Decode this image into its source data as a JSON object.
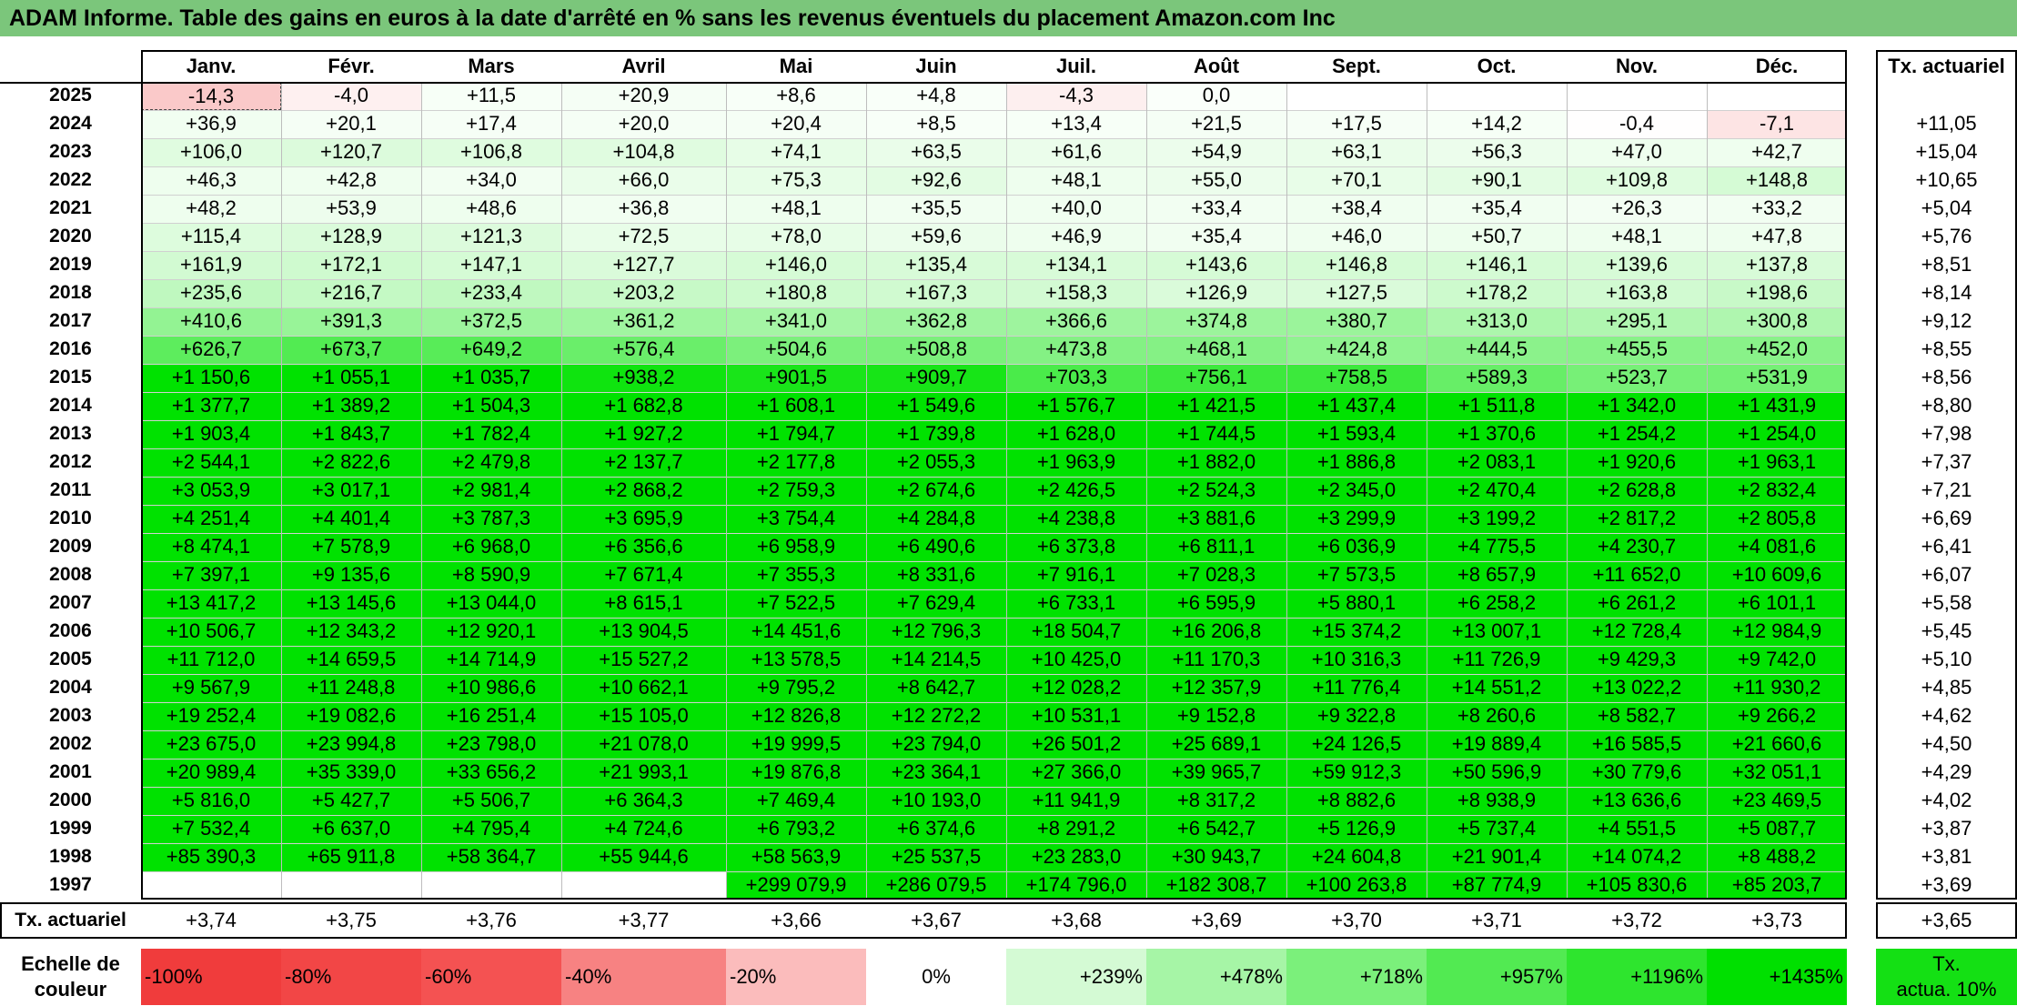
{
  "title": "ADAM Informe. Table des gains en euros à la date d'arrêté en % sans les revenus éventuels du placement Amazon.com Inc",
  "months": [
    "Janv.",
    "Févr.",
    "Mars",
    "Avril",
    "Mai",
    "Juin",
    "Juil.",
    "Août",
    "Sept.",
    "Oct.",
    "Nov.",
    "Déc."
  ],
  "rate_header": "Tx. actuariel",
  "rows": [
    {
      "year": "2025",
      "cells": [
        "-14,3",
        "-4,0",
        "+11,5",
        "+20,9",
        "+8,6",
        "+4,8",
        "-4,3",
        "0,0",
        "",
        "",
        "",
        ""
      ],
      "rate": ""
    },
    {
      "year": "2024",
      "cells": [
        "+36,9",
        "+20,1",
        "+17,4",
        "+20,0",
        "+20,4",
        "+8,5",
        "+13,4",
        "+21,5",
        "+17,5",
        "+14,2",
        "-0,4",
        "-7,1"
      ],
      "rate": "+11,05"
    },
    {
      "year": "2023",
      "cells": [
        "+106,0",
        "+120,7",
        "+106,8",
        "+104,8",
        "+74,1",
        "+63,5",
        "+61,6",
        "+54,9",
        "+63,1",
        "+56,3",
        "+47,0",
        "+42,7"
      ],
      "rate": "+15,04"
    },
    {
      "year": "2022",
      "cells": [
        "+46,3",
        "+42,8",
        "+34,0",
        "+66,0",
        "+75,3",
        "+92,6",
        "+48,1",
        "+55,0",
        "+70,1",
        "+90,1",
        "+109,8",
        "+148,8"
      ],
      "rate": "+10,65"
    },
    {
      "year": "2021",
      "cells": [
        "+48,2",
        "+53,9",
        "+48,6",
        "+36,8",
        "+48,1",
        "+35,5",
        "+40,0",
        "+33,4",
        "+38,4",
        "+35,4",
        "+26,3",
        "+33,2"
      ],
      "rate": "+5,04"
    },
    {
      "year": "2020",
      "cells": [
        "+115,4",
        "+128,9",
        "+121,3",
        "+72,5",
        "+78,0",
        "+59,6",
        "+46,9",
        "+35,4",
        "+46,0",
        "+50,7",
        "+48,1",
        "+47,8"
      ],
      "rate": "+5,76"
    },
    {
      "year": "2019",
      "cells": [
        "+161,9",
        "+172,1",
        "+147,1",
        "+127,7",
        "+146,0",
        "+135,4",
        "+134,1",
        "+143,6",
        "+146,8",
        "+146,1",
        "+139,6",
        "+137,8"
      ],
      "rate": "+8,51"
    },
    {
      "year": "2018",
      "cells": [
        "+235,6",
        "+216,7",
        "+233,4",
        "+203,2",
        "+180,8",
        "+167,3",
        "+158,3",
        "+126,9",
        "+127,5",
        "+178,2",
        "+163,8",
        "+198,6"
      ],
      "rate": "+8,14"
    },
    {
      "year": "2017",
      "cells": [
        "+410,6",
        "+391,3",
        "+372,5",
        "+361,2",
        "+341,0",
        "+362,8",
        "+366,6",
        "+374,8",
        "+380,7",
        "+313,0",
        "+295,1",
        "+300,8"
      ],
      "rate": "+9,12"
    },
    {
      "year": "2016",
      "cells": [
        "+626,7",
        "+673,7",
        "+649,2",
        "+576,4",
        "+504,6",
        "+508,8",
        "+473,8",
        "+468,1",
        "+424,8",
        "+444,5",
        "+455,5",
        "+452,0"
      ],
      "rate": "+8,55"
    },
    {
      "year": "2015",
      "cells": [
        "+1 150,6",
        "+1 055,1",
        "+1 035,7",
        "+938,2",
        "+901,5",
        "+909,7",
        "+703,3",
        "+756,1",
        "+758,5",
        "+589,3",
        "+523,7",
        "+531,9"
      ],
      "rate": "+8,56"
    },
    {
      "year": "2014",
      "cells": [
        "+1 377,7",
        "+1 389,2",
        "+1 504,3",
        "+1 682,8",
        "+1 608,1",
        "+1 549,6",
        "+1 576,7",
        "+1 421,5",
        "+1 437,4",
        "+1 511,8",
        "+1 342,0",
        "+1 431,9"
      ],
      "rate": "+8,80"
    },
    {
      "year": "2013",
      "cells": [
        "+1 903,4",
        "+1 843,7",
        "+1 782,4",
        "+1 927,2",
        "+1 794,7",
        "+1 739,8",
        "+1 628,0",
        "+1 744,5",
        "+1 593,4",
        "+1 370,6",
        "+1 254,2",
        "+1 254,0"
      ],
      "rate": "+7,98"
    },
    {
      "year": "2012",
      "cells": [
        "+2 544,1",
        "+2 822,6",
        "+2 479,8",
        "+2 137,7",
        "+2 177,8",
        "+2 055,3",
        "+1 963,9",
        "+1 882,0",
        "+1 886,8",
        "+2 083,1",
        "+1 920,6",
        "+1 963,1"
      ],
      "rate": "+7,37"
    },
    {
      "year": "2011",
      "cells": [
        "+3 053,9",
        "+3 017,1",
        "+2 981,4",
        "+2 868,2",
        "+2 759,3",
        "+2 674,6",
        "+2 426,5",
        "+2 524,3",
        "+2 345,0",
        "+2 470,4",
        "+2 628,8",
        "+2 832,4"
      ],
      "rate": "+7,21"
    },
    {
      "year": "2010",
      "cells": [
        "+4 251,4",
        "+4 401,4",
        "+3 787,3",
        "+3 695,9",
        "+3 754,4",
        "+4 284,8",
        "+4 238,8",
        "+3 881,6",
        "+3 299,9",
        "+3 199,2",
        "+2 817,2",
        "+2 805,8"
      ],
      "rate": "+6,69"
    },
    {
      "year": "2009",
      "cells": [
        "+8 474,1",
        "+7 578,9",
        "+6 968,0",
        "+6 356,6",
        "+6 958,9",
        "+6 490,6",
        "+6 373,8",
        "+6 811,1",
        "+6 036,9",
        "+4 775,5",
        "+4 230,7",
        "+4 081,6"
      ],
      "rate": "+6,41"
    },
    {
      "year": "2008",
      "cells": [
        "+7 397,1",
        "+9 135,6",
        "+8 590,9",
        "+7 671,4",
        "+7 355,3",
        "+8 331,6",
        "+7 916,1",
        "+7 028,3",
        "+7 573,5",
        "+8 657,9",
        "+11 652,0",
        "+10 609,6"
      ],
      "rate": "+6,07"
    },
    {
      "year": "2007",
      "cells": [
        "+13 417,2",
        "+13 145,6",
        "+13 044,0",
        "+8 615,1",
        "+7 522,5",
        "+7 629,4",
        "+6 733,1",
        "+6 595,9",
        "+5 880,1",
        "+6 258,2",
        "+6 261,2",
        "+6 101,1"
      ],
      "rate": "+5,58"
    },
    {
      "year": "2006",
      "cells": [
        "+10 506,7",
        "+12 343,2",
        "+12 920,1",
        "+13 904,5",
        "+14 451,6",
        "+12 796,3",
        "+18 504,7",
        "+16 206,8",
        "+15 374,2",
        "+13 007,1",
        "+12 728,4",
        "+12 984,9"
      ],
      "rate": "+5,45"
    },
    {
      "year": "2005",
      "cells": [
        "+11 712,0",
        "+14 659,5",
        "+14 714,9",
        "+15 527,2",
        "+13 578,5",
        "+14 214,5",
        "+10 425,0",
        "+11 170,3",
        "+10 316,3",
        "+11 726,9",
        "+9 429,3",
        "+9 742,0"
      ],
      "rate": "+5,10"
    },
    {
      "year": "2004",
      "cells": [
        "+9 567,9",
        "+11 248,8",
        "+10 986,6",
        "+10 662,1",
        "+9 795,2",
        "+8 642,7",
        "+12 028,2",
        "+12 357,9",
        "+11 776,4",
        "+14 551,2",
        "+13 022,2",
        "+11 930,2"
      ],
      "rate": "+4,85"
    },
    {
      "year": "2003",
      "cells": [
        "+19 252,4",
        "+19 082,6",
        "+16 251,4",
        "+15 105,0",
        "+12 826,8",
        "+12 272,2",
        "+10 531,1",
        "+9 152,8",
        "+9 322,8",
        "+8 260,6",
        "+8 582,7",
        "+9 266,2"
      ],
      "rate": "+4,62"
    },
    {
      "year": "2002",
      "cells": [
        "+23 675,0",
        "+23 994,8",
        "+23 798,0",
        "+21 078,0",
        "+19 999,5",
        "+23 794,0",
        "+26 501,2",
        "+25 689,1",
        "+24 126,5",
        "+19 889,4",
        "+16 585,5",
        "+21 660,6"
      ],
      "rate": "+4,50"
    },
    {
      "year": "2001",
      "cells": [
        "+20 989,4",
        "+35 339,0",
        "+33 656,2",
        "+21 993,1",
        "+19 876,8",
        "+23 364,1",
        "+27 366,0",
        "+39 965,7",
        "+59 912,3",
        "+50 596,9",
        "+30 779,6",
        "+32 051,1"
      ],
      "rate": "+4,29"
    },
    {
      "year": "2000",
      "cells": [
        "+5 816,0",
        "+5 427,7",
        "+5 506,7",
        "+6 364,3",
        "+7 469,4",
        "+10 193,0",
        "+11 941,9",
        "+8 317,2",
        "+8 882,6",
        "+8 938,9",
        "+13 636,6",
        "+23 469,5"
      ],
      "rate": "+4,02"
    },
    {
      "year": "1999",
      "cells": [
        "+7 532,4",
        "+6 637,0",
        "+4 795,4",
        "+4 724,6",
        "+6 793,2",
        "+6 374,6",
        "+8 291,2",
        "+6 542,7",
        "+5 126,9",
        "+5 737,4",
        "+4 551,5",
        "+5 087,7"
      ],
      "rate": "+3,87"
    },
    {
      "year": "1998",
      "cells": [
        "+85 390,3",
        "+65 911,8",
        "+58 364,7",
        "+55 944,6",
        "+58 563,9",
        "+25 537,5",
        "+23 283,0",
        "+30 943,7",
        "+24 604,8",
        "+21 901,4",
        "+14 074,2",
        "+8 488,2"
      ],
      "rate": "+3,81"
    },
    {
      "year": "1997",
      "cells": [
        "",
        "",
        "",
        "",
        "+299 079,9",
        "+286 079,5",
        "+174 796,0",
        "+182 308,7",
        "+100 263,8",
        "+87 774,9",
        "+105 830,6",
        "+85 203,7"
      ],
      "rate": "+3,69"
    }
  ],
  "footer": {
    "label": "Tx. actuariel",
    "cells": [
      "+3,74",
      "+3,75",
      "+3,76",
      "+3,77",
      "+3,66",
      "+3,67",
      "+3,68",
      "+3,69",
      "+3,70",
      "+3,71",
      "+3,72",
      "+3,73"
    ],
    "rate": "+3,65"
  },
  "scale": {
    "label_line1": "Echelle de",
    "label_line2": "couleur",
    "steps": [
      {
        "label": "-100%",
        "color": "#f03c3c",
        "align": "left"
      },
      {
        "label": "-80%",
        "color": "#f24646",
        "align": "left"
      },
      {
        "label": "-60%",
        "color": "#f45252",
        "align": "left"
      },
      {
        "label": "-40%",
        "color": "#f78282",
        "align": "left"
      },
      {
        "label": "-20%",
        "color": "#fbbcbc",
        "align": "left"
      },
      {
        "label": "0%",
        "color": "#ffffff",
        "align": "center"
      },
      {
        "label": "+239%",
        "color": "#d4fad4",
        "align": "right"
      },
      {
        "label": "+478%",
        "color": "#a6f5a6",
        "align": "right"
      },
      {
        "label": "+718%",
        "color": "#7bf07b",
        "align": "right"
      },
      {
        "label": "+957%",
        "color": "#52ea52",
        "align": "right"
      },
      {
        "label": "+1196%",
        "color": "#2ee52e",
        "align": "right"
      },
      {
        "label": "+1435%",
        "color": "#00e000",
        "align": "right"
      }
    ],
    "rate_box_line1": "Tx.",
    "rate_box_line2": "actua. 10%",
    "rate_box_color": "#14e014"
  },
  "colors": {
    "title_bg": "#7bc67b",
    "max_green": "#00e000",
    "max_red": "#f03c3c"
  }
}
